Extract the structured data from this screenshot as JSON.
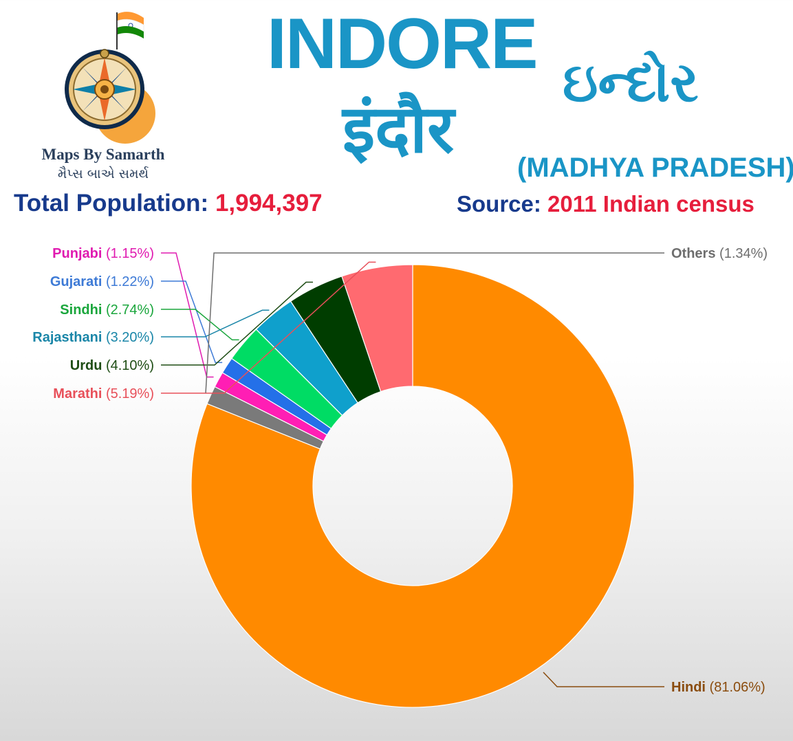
{
  "brand": {
    "name_en": "Maps By Samarth",
    "name_gu": "મૈપ્સ બાએ સમર્થ",
    "icon": "compass-rose-with-indian-flag"
  },
  "header": {
    "title_en": "INDORE",
    "title_hi": "इंदौर",
    "title_gu": "ઇન્દોર",
    "state": "(MADHYA PRADESH)",
    "population_label": "Total Population:",
    "population_value": "1,994,397",
    "source_label": "Source:",
    "source_value": "2011 Indian census"
  },
  "colors": {
    "title_blue": "#1a95c6",
    "navy": "#173a8c",
    "red": "#e61e3c"
  },
  "chart_data": {
    "type": "pie",
    "style": "donut",
    "start": "12 o'clock",
    "direction": "clockwise",
    "slices": [
      {
        "name": "Hindi",
        "pct_label": "(81.06%)",
        "value": 81.06,
        "color": "#ff8a00",
        "label_color": "#8a4c0e"
      },
      {
        "name": "Marathi",
        "pct_label": "(5.19%)",
        "value": 5.19,
        "color": "#ff6a70",
        "label_color": "#e8505a"
      },
      {
        "name": "Urdu",
        "pct_label": "(4.10%)",
        "value": 4.1,
        "color": "#003d00",
        "label_color": "#1e4d14"
      },
      {
        "name": "Rajasthani",
        "pct_label": "(3.20%)",
        "value": 3.2,
        "color": "#0fa0cc",
        "label_color": "#1a86a8"
      },
      {
        "name": "Sindhi",
        "pct_label": "(2.74%)",
        "value": 2.74,
        "color": "#00dc64",
        "label_color": "#1aa63c"
      },
      {
        "name": "Gujarati",
        "pct_label": "(1.22%)",
        "value": 1.22,
        "color": "#2470e8",
        "label_color": "#3d7ad6"
      },
      {
        "name": "Punjabi",
        "pct_label": "(1.15%)",
        "value": 1.15,
        "color": "#ff1eb4",
        "label_color": "#e01ab0"
      },
      {
        "name": "Others",
        "pct_label": "(1.34%)",
        "value": 1.34,
        "color": "#7a7a7a",
        "label_color": "#6e6e6e"
      }
    ]
  }
}
